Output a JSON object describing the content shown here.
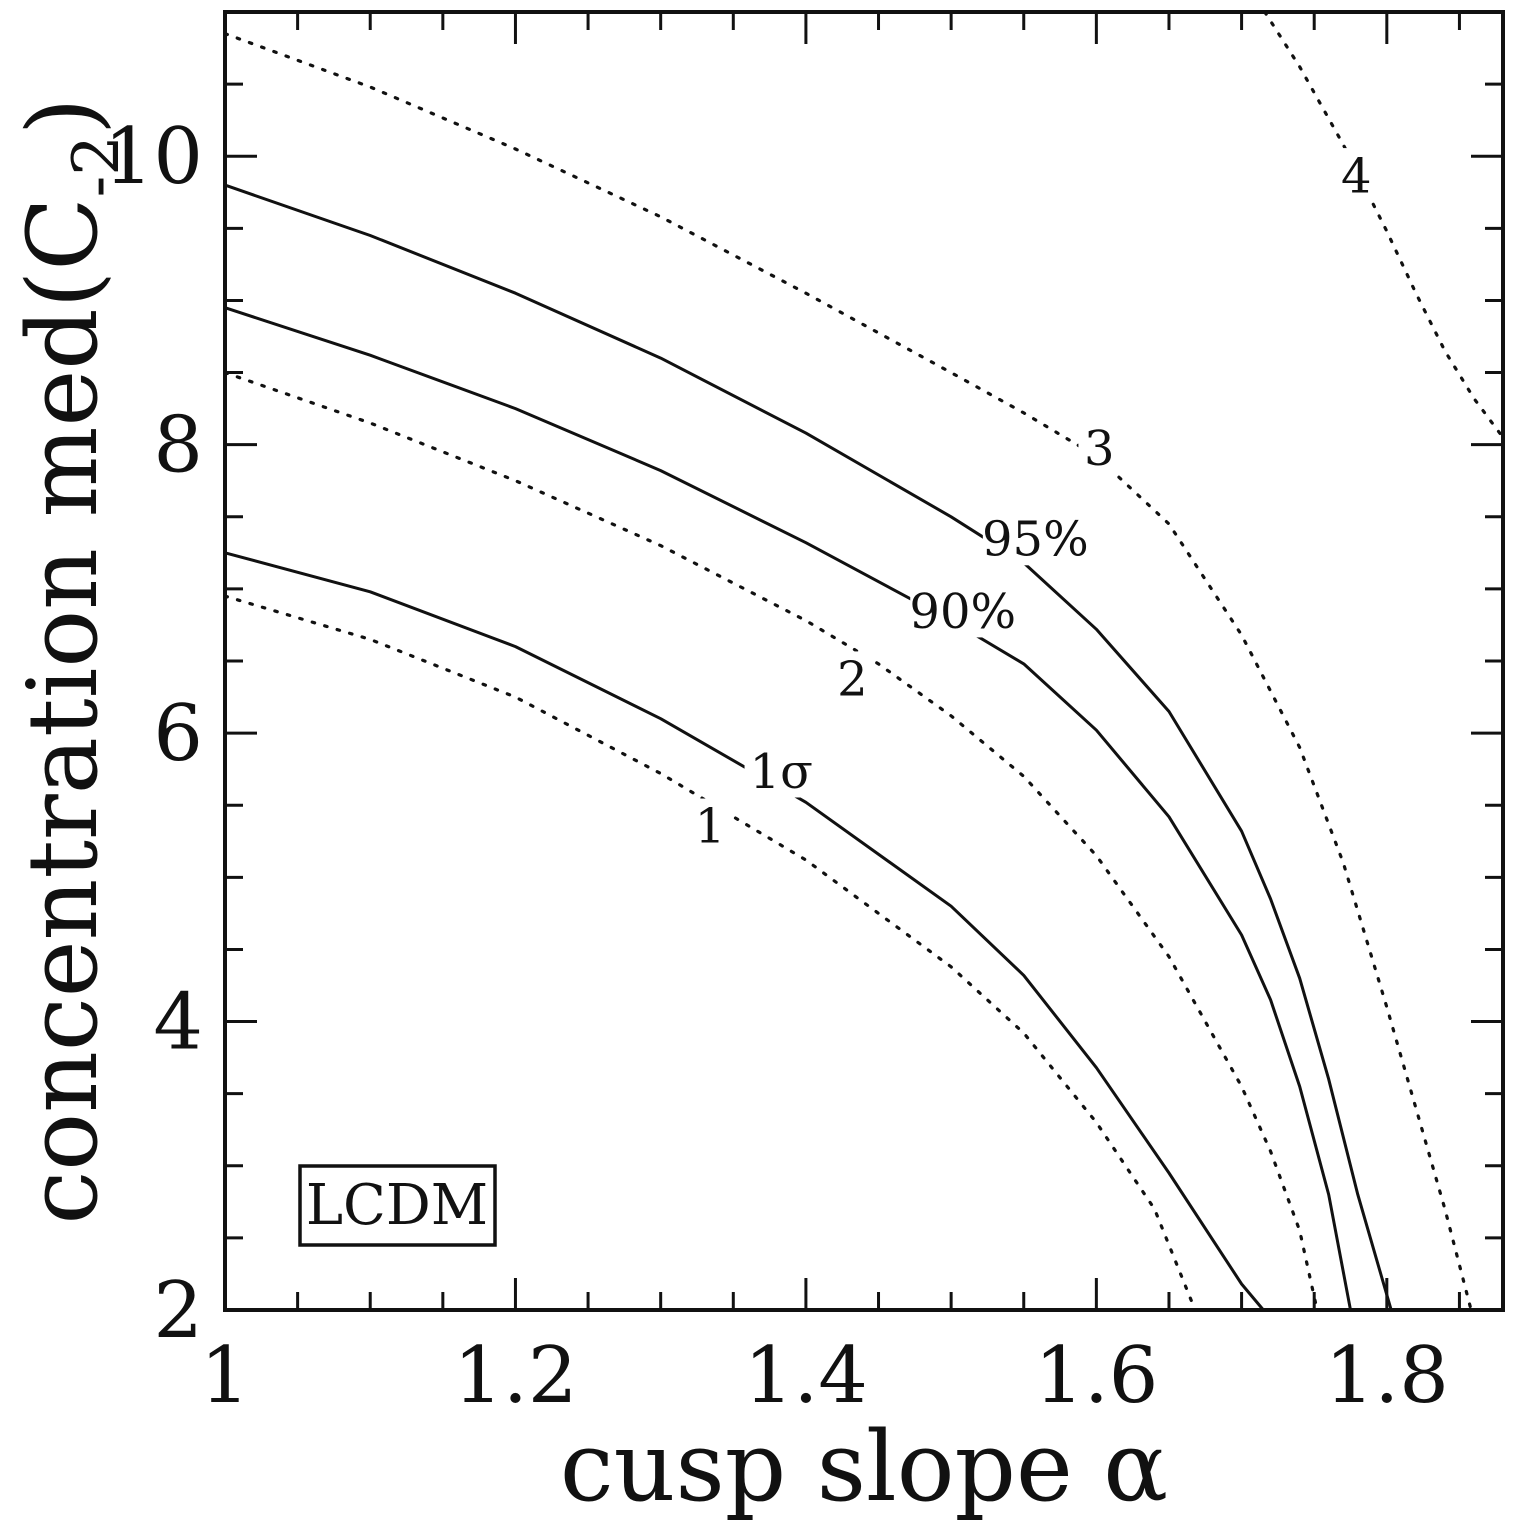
{
  "page": {
    "background": "#ffffff",
    "line_color": "#111111"
  },
  "chart_data": {
    "type": "contour",
    "title": "",
    "xlabel": "cusp slope α",
    "ylabel": "concentration med(C_-2)",
    "ylabel_parts": {
      "prefix": "concentration med(C",
      "sub": "-2",
      "suffix": ")"
    },
    "xlim": [
      1.0,
      1.88
    ],
    "ylim": [
      2.0,
      11.0
    ],
    "grid": false,
    "x_major_ticks": [
      1.0,
      1.2,
      1.4,
      1.6,
      1.8
    ],
    "x_tick_labels": [
      "1",
      "1.2",
      "1.4",
      "1.6",
      "1.8"
    ],
    "x_minor_step": 0.05,
    "y_major_ticks": [
      2,
      4,
      6,
      8,
      10
    ],
    "y_tick_labels": [
      "2",
      "4",
      "6",
      "8",
      "10"
    ],
    "y_minor_step": 0.5,
    "legend_box": {
      "label": "LCDM"
    },
    "series": [
      {
        "name": "contour-1sigma",
        "style": "solid",
        "label": "1σ",
        "label_at": [
          1.383,
          5.74
        ],
        "points": [
          [
            1.0,
            7.25
          ],
          [
            1.1,
            6.98
          ],
          [
            1.2,
            6.6
          ],
          [
            1.3,
            6.1
          ],
          [
            1.4,
            5.52
          ],
          [
            1.5,
            4.8
          ],
          [
            1.55,
            4.32
          ],
          [
            1.6,
            3.68
          ],
          [
            1.65,
            2.95
          ],
          [
            1.7,
            2.18
          ],
          [
            1.715,
            2.0
          ]
        ]
      },
      {
        "name": "contour-90pct",
        "style": "solid",
        "label": "90%",
        "label_at": [
          1.508,
          6.85
        ],
        "points": [
          [
            1.0,
            8.95
          ],
          [
            1.1,
            8.62
          ],
          [
            1.2,
            8.25
          ],
          [
            1.3,
            7.82
          ],
          [
            1.4,
            7.32
          ],
          [
            1.5,
            6.78
          ],
          [
            1.55,
            6.48
          ],
          [
            1.6,
            6.02
          ],
          [
            1.65,
            5.42
          ],
          [
            1.7,
            4.6
          ],
          [
            1.72,
            4.15
          ],
          [
            1.74,
            3.55
          ],
          [
            1.76,
            2.8
          ],
          [
            1.775,
            2.0
          ]
        ]
      },
      {
        "name": "contour-95pct",
        "style": "solid",
        "label": "95%",
        "label_at": [
          1.558,
          7.35
        ],
        "points": [
          [
            1.0,
            9.8
          ],
          [
            1.1,
            9.45
          ],
          [
            1.2,
            9.05
          ],
          [
            1.3,
            8.6
          ],
          [
            1.4,
            8.08
          ],
          [
            1.5,
            7.5
          ],
          [
            1.55,
            7.18
          ],
          [
            1.6,
            6.72
          ],
          [
            1.65,
            6.15
          ],
          [
            1.7,
            5.32
          ],
          [
            1.72,
            4.85
          ],
          [
            1.74,
            4.3
          ],
          [
            1.76,
            3.6
          ],
          [
            1.78,
            2.8
          ],
          [
            1.803,
            2.0
          ]
        ]
      },
      {
        "name": "contour-1",
        "style": "dotted",
        "label": "1",
        "label_at": [
          1.334,
          5.36
        ],
        "points": [
          [
            1.0,
            6.95
          ],
          [
            1.1,
            6.65
          ],
          [
            1.2,
            6.25
          ],
          [
            1.3,
            5.72
          ],
          [
            1.4,
            5.12
          ],
          [
            1.5,
            4.38
          ],
          [
            1.55,
            3.92
          ],
          [
            1.6,
            3.3
          ],
          [
            1.64,
            2.7
          ],
          [
            1.668,
            2.0
          ]
        ]
      },
      {
        "name": "contour-2",
        "style": "dotted",
        "label": "2",
        "label_at": [
          1.432,
          6.38
        ],
        "points": [
          [
            1.0,
            8.5
          ],
          [
            1.1,
            8.15
          ],
          [
            1.2,
            7.75
          ],
          [
            1.3,
            7.3
          ],
          [
            1.4,
            6.78
          ],
          [
            1.45,
            6.48
          ],
          [
            1.5,
            6.12
          ],
          [
            1.55,
            5.7
          ],
          [
            1.6,
            5.15
          ],
          [
            1.65,
            4.45
          ],
          [
            1.7,
            3.55
          ],
          [
            1.72,
            3.1
          ],
          [
            1.74,
            2.55
          ],
          [
            1.752,
            2.0
          ]
        ]
      },
      {
        "name": "contour-3",
        "style": "dotted",
        "label": "3",
        "label_at": [
          1.602,
          7.98
        ],
        "points": [
          [
            1.0,
            10.85
          ],
          [
            1.1,
            10.48
          ],
          [
            1.2,
            10.05
          ],
          [
            1.3,
            9.58
          ],
          [
            1.4,
            9.05
          ],
          [
            1.5,
            8.5
          ],
          [
            1.55,
            8.22
          ],
          [
            1.6,
            7.92
          ],
          [
            1.65,
            7.45
          ],
          [
            1.7,
            6.68
          ],
          [
            1.74,
            5.9
          ],
          [
            1.77,
            5.1
          ],
          [
            1.8,
            4.1
          ],
          [
            1.82,
            3.4
          ],
          [
            1.84,
            2.7
          ],
          [
            1.858,
            2.0
          ]
        ]
      },
      {
        "name": "contour-4",
        "style": "dotted",
        "label": "4",
        "label_at": [
          1.779,
          9.87
        ],
        "points": [
          [
            1.716,
            11.0
          ],
          [
            1.74,
            10.62
          ],
          [
            1.77,
            10.08
          ],
          [
            1.8,
            9.48
          ],
          [
            1.82,
            9.05
          ],
          [
            1.84,
            8.65
          ],
          [
            1.86,
            8.32
          ],
          [
            1.88,
            8.05
          ]
        ]
      }
    ]
  }
}
